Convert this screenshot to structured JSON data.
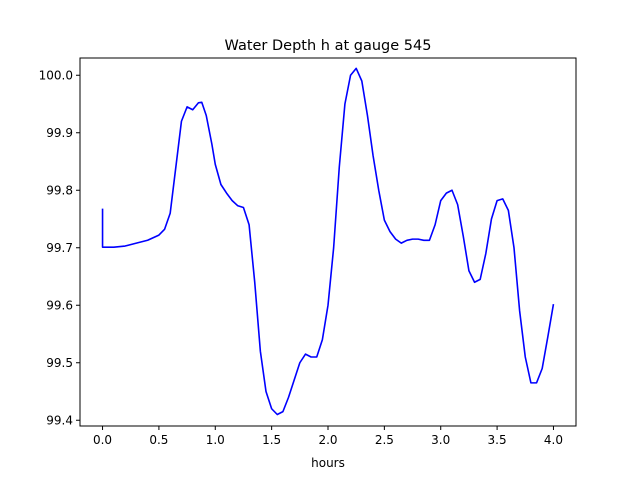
{
  "chart_data": {
    "type": "line",
    "title": "Water Depth h at gauge 545",
    "xlabel": "hours",
    "ylabel": "",
    "xlim": [
      -0.2,
      4.2
    ],
    "ylim": [
      99.39,
      100.03
    ],
    "grid": false,
    "x_ticks": [
      0.0,
      0.5,
      1.0,
      1.5,
      2.0,
      2.5,
      3.0,
      3.5,
      4.0
    ],
    "x_tick_labels": [
      "0.0",
      "0.5",
      "1.0",
      "1.5",
      "2.0",
      "2.5",
      "3.0",
      "3.5",
      "4.0"
    ],
    "y_ticks": [
      99.4,
      99.5,
      99.6,
      99.7,
      99.8,
      99.9,
      100.0
    ],
    "y_tick_labels": [
      "99.4",
      "99.5",
      "99.6",
      "99.7",
      "99.8",
      "99.9",
      "100.0"
    ],
    "series": [
      {
        "color": "#0000ff",
        "x": [
          0.0,
          0.0,
          0.1,
          0.2,
          0.3,
          0.4,
          0.5,
          0.55,
          0.6,
          0.65,
          0.7,
          0.75,
          0.8,
          0.85,
          0.88,
          0.92,
          0.97,
          1.0,
          1.05,
          1.1,
          1.15,
          1.2,
          1.25,
          1.3,
          1.35,
          1.4,
          1.45,
          1.5,
          1.55,
          1.6,
          1.65,
          1.7,
          1.75,
          1.8,
          1.85,
          1.9,
          1.95,
          2.0,
          2.05,
          2.1,
          2.15,
          2.2,
          2.25,
          2.3,
          2.35,
          2.4,
          2.45,
          2.5,
          2.55,
          2.6,
          2.65,
          2.7,
          2.75,
          2.8,
          2.85,
          2.9,
          2.95,
          3.0,
          3.05,
          3.1,
          3.15,
          3.2,
          3.25,
          3.3,
          3.35,
          3.4,
          3.45,
          3.5,
          3.55,
          3.6,
          3.65,
          3.7,
          3.75,
          3.8,
          3.85,
          3.9,
          3.95,
          4.0
        ],
        "y": [
          99.768,
          99.701,
          99.701,
          99.703,
          99.708,
          99.713,
          99.722,
          99.732,
          99.76,
          99.84,
          99.92,
          99.945,
          99.94,
          99.952,
          99.953,
          99.93,
          99.88,
          99.845,
          99.81,
          99.795,
          99.782,
          99.773,
          99.77,
          99.74,
          99.64,
          99.52,
          99.45,
          99.42,
          99.41,
          99.415,
          99.44,
          99.47,
          99.5,
          99.515,
          99.51,
          99.51,
          99.54,
          99.6,
          99.7,
          99.84,
          99.95,
          100.0,
          100.012,
          99.99,
          99.93,
          99.86,
          99.8,
          99.748,
          99.728,
          99.715,
          99.708,
          99.713,
          99.715,
          99.715,
          99.713,
          99.713,
          99.74,
          99.782,
          99.795,
          99.8,
          99.775,
          99.72,
          99.66,
          99.64,
          99.645,
          99.69,
          99.75,
          99.782,
          99.785,
          99.765,
          99.7,
          99.59,
          99.51,
          99.465,
          99.465,
          99.49,
          99.545,
          99.602
        ]
      }
    ]
  }
}
